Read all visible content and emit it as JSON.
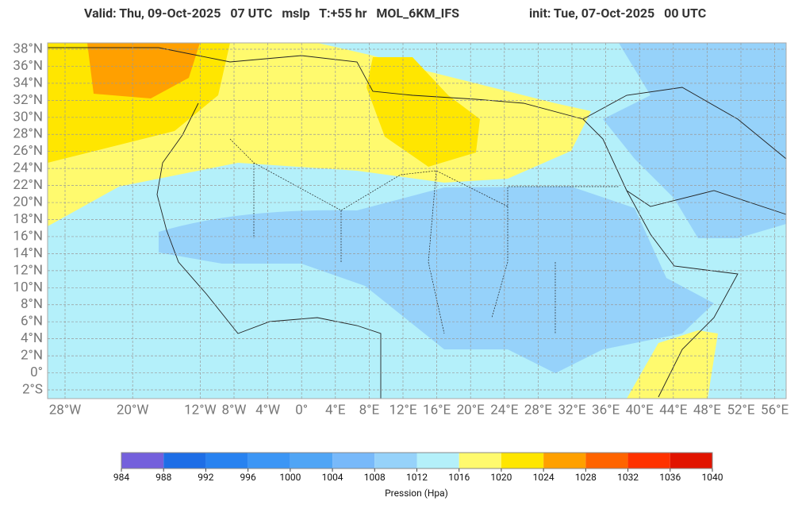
{
  "header": {
    "valid": "Valid: Thu, 09-Oct-2025   07 UTC   mslp   T:+55 hr   MOL_6KM_IFS",
    "init": "init: Tue, 07-Oct-2025   00 UTC"
  },
  "map": {
    "lat_labels": [
      {
        "value": 38,
        "label": "38°N"
      },
      {
        "value": 36,
        "label": "36°N"
      },
      {
        "value": 34,
        "label": "34°N"
      },
      {
        "value": 32,
        "label": "32°N"
      },
      {
        "value": 30,
        "label": "30°N"
      },
      {
        "value": 28,
        "label": "28°N"
      },
      {
        "value": 26,
        "label": "26°N"
      },
      {
        "value": 24,
        "label": "24°N"
      },
      {
        "value": 22,
        "label": "22°N"
      },
      {
        "value": 20,
        "label": "20°N"
      },
      {
        "value": 18,
        "label": "18°N"
      },
      {
        "value": 16,
        "label": "16°N"
      },
      {
        "value": 14,
        "label": "14°N"
      },
      {
        "value": 12,
        "label": "12°N"
      },
      {
        "value": 10,
        "label": "10°N"
      },
      {
        "value": 8,
        "label": "8°N"
      },
      {
        "value": 6,
        "label": "6°N"
      },
      {
        "value": 4,
        "label": "4°N"
      },
      {
        "value": 2,
        "label": "2°N"
      },
      {
        "value": 0,
        "label": "0°"
      },
      {
        "value": -2,
        "label": "2°S"
      }
    ],
    "lon_labels": [
      {
        "value": -28,
        "label": "28°W"
      },
      {
        "value": -20,
        "label": "20°W"
      },
      {
        "value": -12,
        "label": "12°W"
      },
      {
        "value": -8,
        "label": "8°W"
      },
      {
        "value": -4,
        "label": "4°W"
      },
      {
        "value": 0,
        "label": "0°"
      },
      {
        "value": 4,
        "label": "4°E"
      },
      {
        "value": 8,
        "label": "8°E"
      },
      {
        "value": 12,
        "label": "12°E"
      },
      {
        "value": 16,
        "label": "16°E"
      },
      {
        "value": 20,
        "label": "20°E"
      },
      {
        "value": 24,
        "label": "24°E"
      },
      {
        "value": 28,
        "label": "28°E"
      },
      {
        "value": 32,
        "label": "32°E"
      },
      {
        "value": 36,
        "label": "36°E"
      },
      {
        "value": 40,
        "label": "40°E"
      },
      {
        "value": 44,
        "label": "44°E"
      },
      {
        "value": 48,
        "label": "48°E"
      },
      {
        "value": 52,
        "label": "52°E"
      },
      {
        "value": 56,
        "label": "56°E"
      }
    ]
  },
  "colorbar": {
    "label": "Pression (Hpa)",
    "ticks": [
      984,
      988,
      992,
      996,
      1000,
      1004,
      1008,
      1012,
      1016,
      1020,
      1024,
      1028,
      1032,
      1036,
      1040
    ],
    "colors": [
      "#7460dc",
      "#1e6ee6",
      "#2882f0",
      "#3c96f5",
      "#50a5f5",
      "#78b9fa",
      "#96d2fa",
      "#b4f0fa",
      "#fffa6e",
      "#ffe600",
      "#ffa000",
      "#ff6400",
      "#ff3200",
      "#e11400"
    ]
  }
}
